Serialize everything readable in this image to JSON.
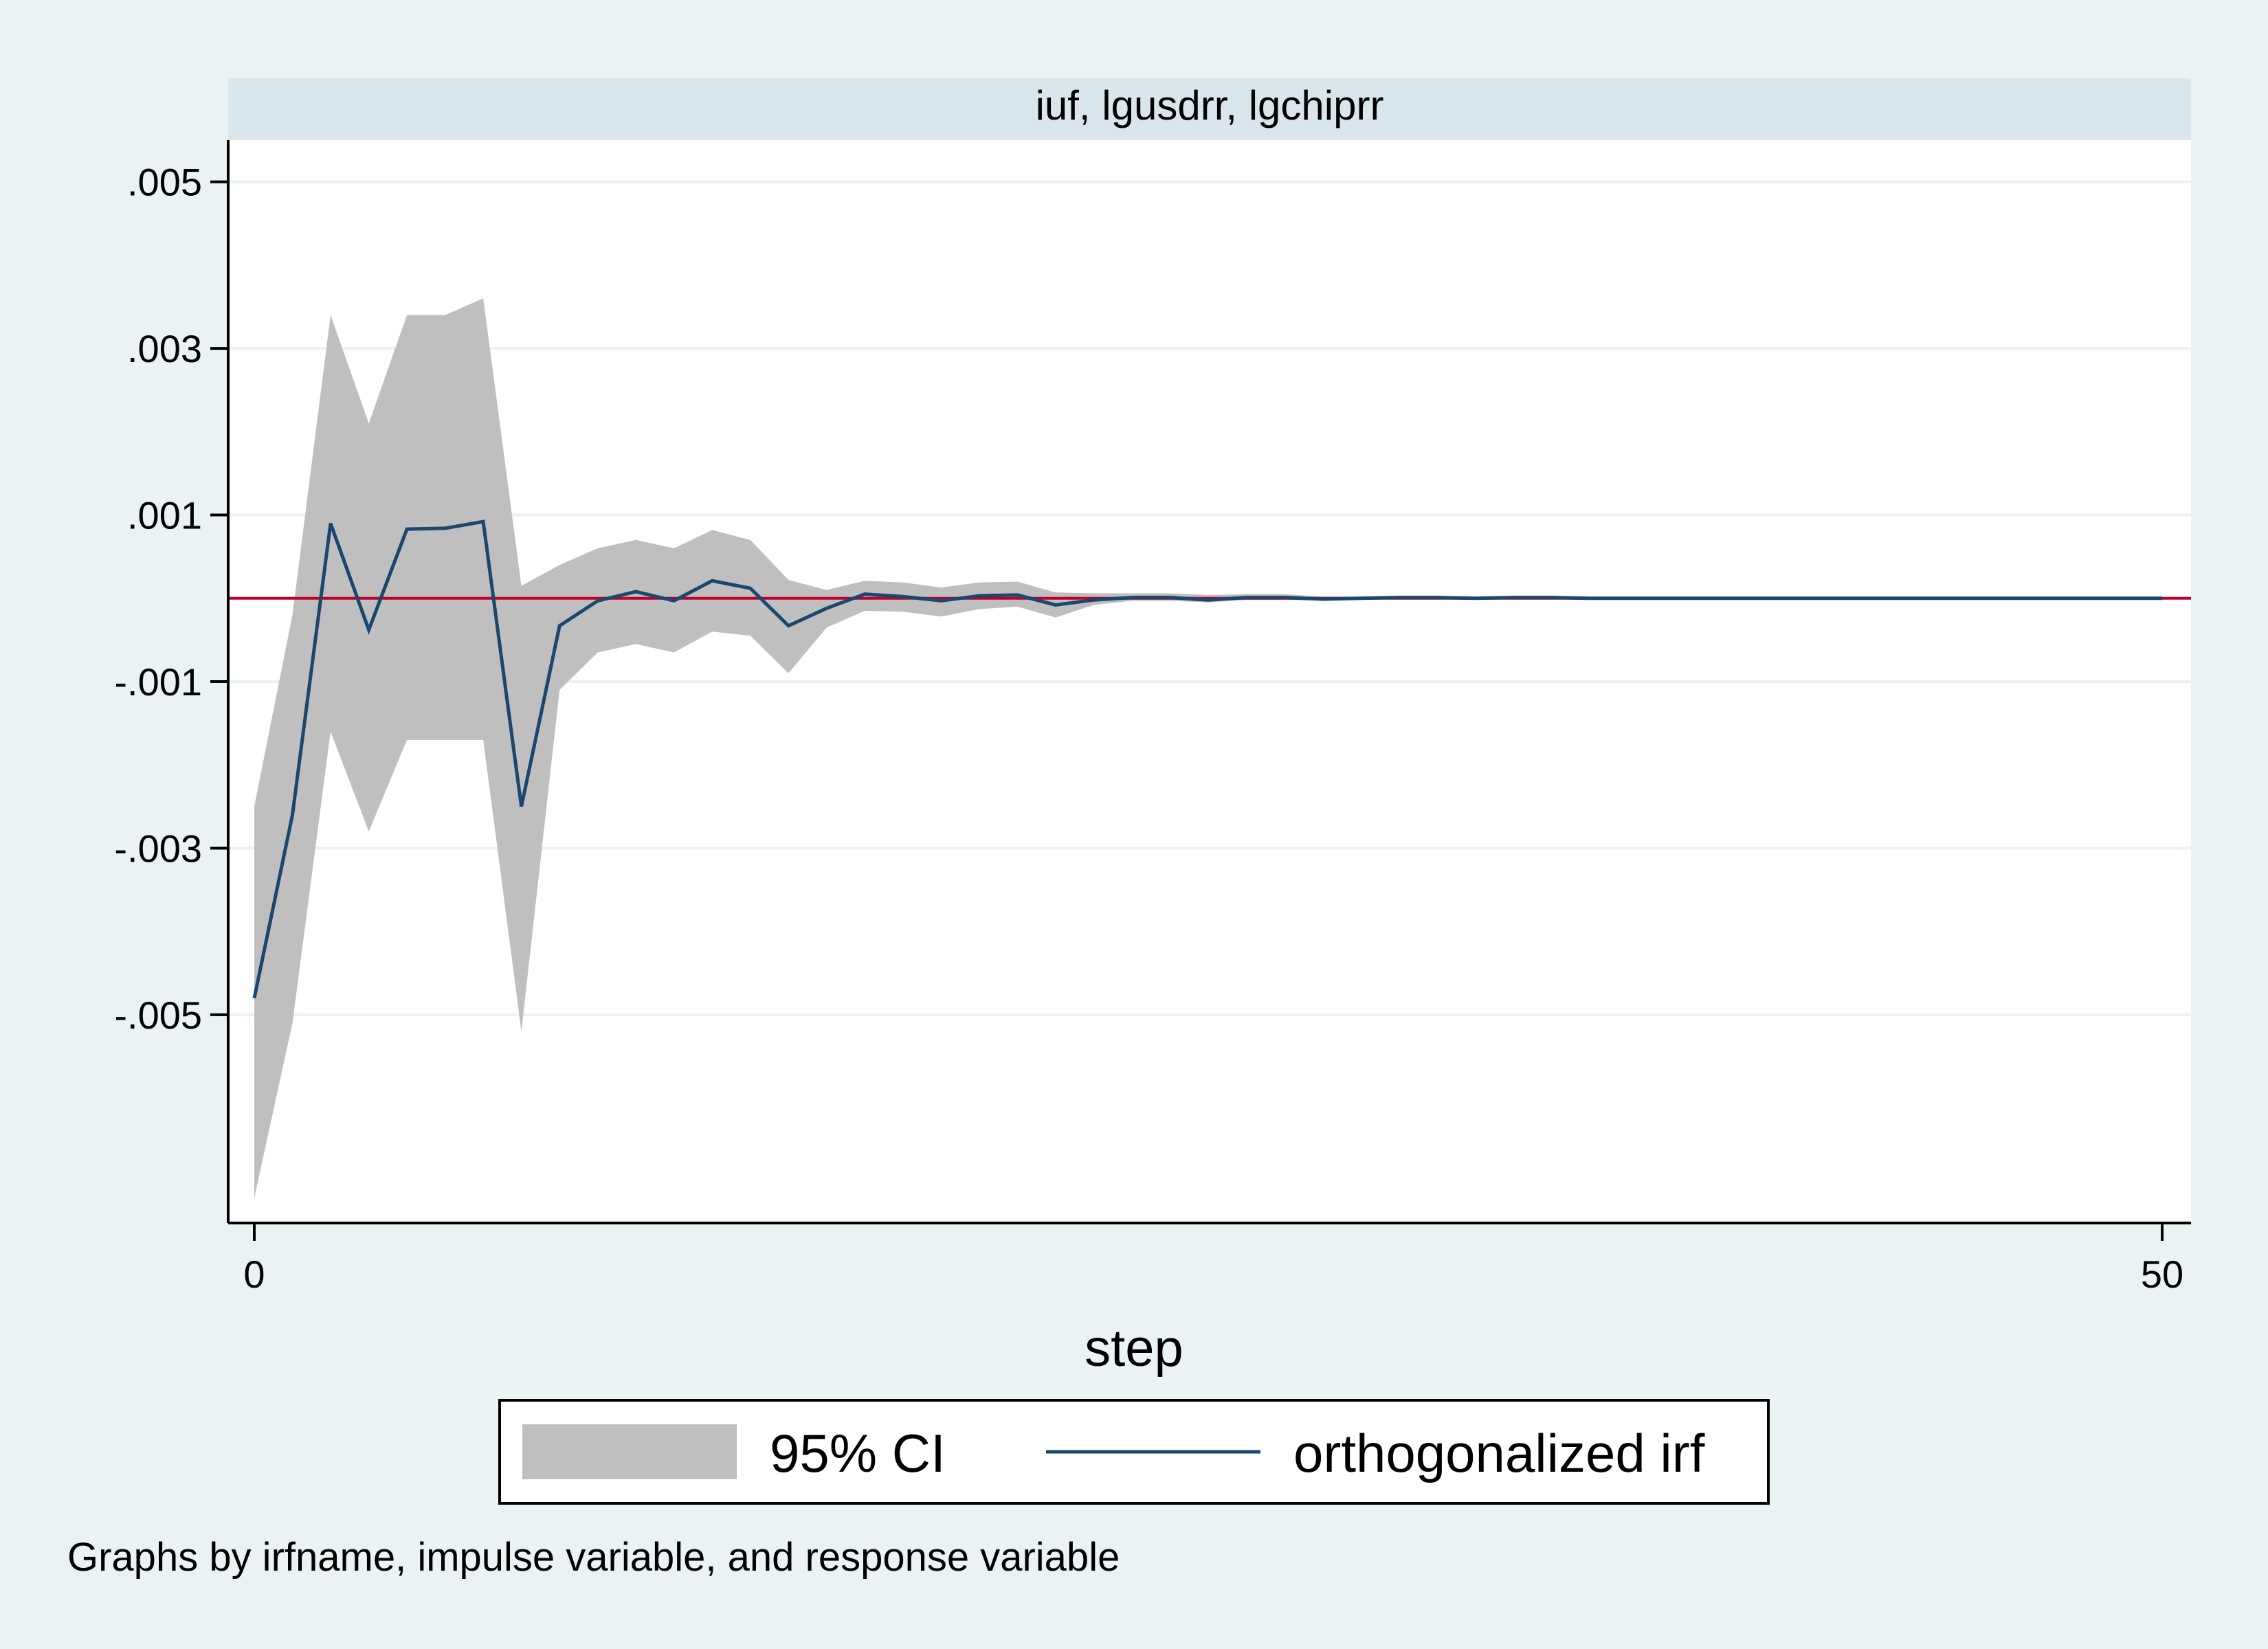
{
  "chart_data": {
    "type": "line",
    "panel_title": "iuf, lgusdrr, lgchiprr",
    "xlabel": "step",
    "ylabel": "",
    "xlim": [
      0,
      50
    ],
    "ylim": [
      -0.0075,
      0.0055
    ],
    "x_ticks": [
      {
        "value": 0,
        "label": "0"
      },
      {
        "value": 50,
        "label": "50"
      }
    ],
    "y_ticks": [
      {
        "value": 0.005,
        "label": ".005"
      },
      {
        "value": 0.003,
        "label": ".003"
      },
      {
        "value": 0.001,
        "label": ".001"
      },
      {
        "value": -0.001,
        "label": "-.001"
      },
      {
        "value": -0.003,
        "label": "-.003"
      },
      {
        "value": -0.005,
        "label": "-.005"
      }
    ],
    "grid": true,
    "reference_line": {
      "y": 0,
      "color": "#c0002a"
    },
    "series": [
      {
        "name": "95% CI",
        "kind": "band",
        "color": "#bfbfbf",
        "x": [
          0,
          1,
          2,
          3,
          4,
          5,
          6,
          7,
          8,
          9,
          10,
          11,
          12,
          13,
          14,
          15,
          16,
          17,
          18,
          19,
          20,
          21,
          22,
          23,
          24,
          25,
          26,
          27,
          28,
          29,
          30,
          31,
          32,
          33,
          34,
          35,
          36,
          37,
          38,
          39,
          40,
          41,
          42,
          43,
          44,
          45,
          46,
          47,
          48,
          49,
          50
        ],
        "lower": [
          -0.0072,
          -0.0051,
          -0.0016,
          -0.0028,
          -0.0017,
          -0.0017,
          -0.0017,
          -0.0052,
          -0.0011,
          -0.00065,
          -0.00055,
          -0.00065,
          -0.0004,
          -0.00045,
          -0.0009,
          -0.00035,
          -0.00015,
          -0.00016,
          -0.00022,
          -0.00013,
          -0.0001,
          -0.00023,
          -8e-05,
          -3e-05,
          -3e-05,
          -5e-05,
          -2e-05,
          -2e-05,
          -2e-05,
          -1e-05,
          -1e-05,
          -1e-05,
          -1e-05,
          -1e-05,
          -1e-05,
          -1e-05,
          -1e-05,
          -1e-05,
          -1e-05,
          -1e-05,
          -1e-05,
          -1e-05,
          -1e-05,
          -1e-05,
          -1e-05,
          -1e-05,
          -1e-05,
          -1e-05,
          -1e-05,
          -1e-05,
          -1e-05
        ],
        "upper": [
          -0.0025,
          -0.0002,
          0.0034,
          0.0021,
          0.0034,
          0.0034,
          0.0036,
          0.00015,
          0.0004,
          0.0006,
          0.0007,
          0.0006,
          0.00082,
          0.0007,
          0.00022,
          0.0001,
          0.00021,
          0.00019,
          0.00013,
          0.00019,
          0.0002,
          7e-05,
          6e-05,
          6e-05,
          6e-05,
          4e-05,
          5e-05,
          5e-05,
          2e-05,
          2e-05,
          2e-05,
          1e-05,
          1e-05,
          1e-05,
          1e-05,
          1e-05,
          1e-05,
          1e-05,
          1e-05,
          1e-05,
          1e-05,
          1e-05,
          1e-05,
          1e-05,
          1e-05,
          1e-05,
          1e-05,
          1e-05,
          1e-05,
          1e-05,
          1e-05
        ]
      },
      {
        "name": "orthogonalized irf",
        "kind": "line",
        "color": "#1a476f",
        "x": [
          0,
          1,
          2,
          3,
          4,
          5,
          6,
          7,
          8,
          9,
          10,
          11,
          12,
          13,
          14,
          15,
          16,
          17,
          18,
          19,
          20,
          21,
          22,
          23,
          24,
          25,
          26,
          27,
          28,
          29,
          30,
          31,
          32,
          33,
          34,
          35,
          36,
          37,
          38,
          39,
          40,
          41,
          42,
          43,
          44,
          45,
          46,
          47,
          48,
          49,
          50
        ],
        "y": [
          -0.0048,
          -0.0026,
          0.0009,
          -0.00038,
          0.00083,
          0.00084,
          0.00092,
          -0.0025,
          -0.00033,
          -3e-05,
          8e-05,
          -3e-05,
          0.00021,
          0.00012,
          -0.00033,
          -0.00012,
          5e-05,
          2e-05,
          -3e-05,
          3e-05,
          4e-05,
          -8e-05,
          -2e-05,
          1e-05,
          1e-05,
          -2e-05,
          1e-05,
          1e-05,
          -1e-05,
          0,
          1e-05,
          1e-05,
          0,
          1e-05,
          1e-05,
          0,
          0,
          0,
          0,
          0,
          0,
          0,
          0,
          0,
          0,
          0,
          0,
          0,
          0,
          0,
          0
        ]
      }
    ],
    "legend": {
      "placement": "bottom",
      "entries": [
        "95% CI",
        "orthogonalized irf"
      ]
    },
    "note": "Graphs by irfname, impulse variable, and response variable"
  }
}
